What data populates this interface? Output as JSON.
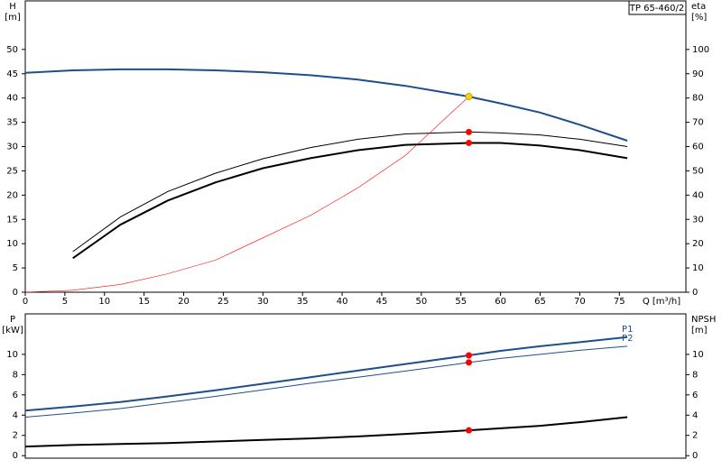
{
  "chart_data": [
    {
      "type": "line",
      "title": "TP 65-460/2",
      "x_label": "Q [m³/h]",
      "y_label": "H",
      "y_unit": "[m]",
      "y2_label": "eta",
      "y2_unit": "[%]",
      "x": [
        0,
        6,
        12,
        18,
        24,
        30,
        36,
        42,
        48,
        56,
        60,
        65,
        70,
        76
      ],
      "xlim": [
        0,
        83.4
      ],
      "xticks": [
        0,
        5,
        10,
        15,
        20,
        25,
        30,
        35,
        40,
        45,
        50,
        55,
        60,
        65,
        70,
        75
      ],
      "ylim": [
        0,
        60
      ],
      "yticks": [
        0,
        5,
        10,
        15,
        20,
        25,
        30,
        35,
        40,
        45,
        50
      ],
      "y2lim": [
        0,
        120
      ],
      "y2ticks": [
        0,
        10,
        20,
        30,
        40,
        50,
        60,
        70,
        80,
        90,
        100
      ],
      "series": [
        {
          "color": "#1f4e8c",
          "line_width": 2,
          "values": [
            45.2,
            45.7,
            45.9,
            45.9,
            45.7,
            45.3,
            44.7,
            43.8,
            42.5,
            40.3,
            38.9,
            37,
            34.5,
            31.2
          ]
        },
        {
          "color": "#000000",
          "line_width": 1,
          "axis": "y2",
          "values": [
            null,
            16.7,
            31,
            41.5,
            49,
            55,
            59.6,
            63,
            65.2,
            66,
            65.6,
            64.8,
            63,
            60
          ]
        },
        {
          "color": "#000000",
          "line_width": 2,
          "axis": "y2",
          "values": [
            null,
            14,
            27.8,
            37.8,
            45.2,
            51.1,
            55.2,
            58.5,
            60.7,
            61.5,
            61.5,
            60.4,
            58.5,
            55.2
          ]
        },
        {
          "color": "#ff0000",
          "line_width": 0.6,
          "values": [
            0,
            0.4,
            1.6,
            3.8,
            6.6,
            11.2,
            15.8,
            21.5,
            28.2,
            40.3,
            null,
            null,
            null,
            null
          ]
        }
      ],
      "points": [
        {
          "x": 56,
          "y": 40.3,
          "color": "#ffd700"
        },
        {
          "x": 56,
          "y": 66,
          "axis": "y2",
          "color": "#ff0000"
        },
        {
          "x": 56,
          "y": 61.5,
          "axis": "y2",
          "color": "#ff0000"
        }
      ]
    },
    {
      "type": "line",
      "y_label": "P",
      "y_unit": "[kW]",
      "y2_label": "NPSH",
      "y2_unit": "[m]",
      "x": [
        0,
        6,
        12,
        18,
        24,
        30,
        36,
        42,
        48,
        56,
        60,
        65,
        70,
        76
      ],
      "xlim": [
        0,
        83.4
      ],
      "ylim": [
        -0.25,
        14
      ],
      "yticks": [
        0,
        2,
        4,
        6,
        8,
        10
      ],
      "y2lim": [
        -0.25,
        14
      ],
      "y2ticks": [
        0,
        2,
        4,
        6,
        8,
        10
      ],
      "series": [
        {
          "name": "P1",
          "color": "#1f4e8c",
          "line_width": 2,
          "values": [
            4.45,
            4.85,
            5.3,
            5.85,
            6.45,
            7.1,
            7.75,
            8.4,
            9.05,
            9.9,
            10.35,
            10.8,
            11.2,
            11.7
          ]
        },
        {
          "name": "P2",
          "color": "#1f4e8c",
          "line_width": 1,
          "values": [
            3.8,
            4.2,
            4.65,
            5.25,
            5.85,
            6.5,
            7.15,
            7.75,
            8.35,
            9.2,
            9.6,
            10.0,
            10.4,
            10.8
          ]
        },
        {
          "color": "#000000",
          "line_width": 2,
          "axis": "y2",
          "values": [
            0.9,
            1.05,
            1.15,
            1.25,
            1.4,
            1.55,
            1.7,
            1.9,
            2.15,
            2.5,
            2.7,
            2.95,
            3.3,
            3.8
          ]
        }
      ],
      "points": [
        {
          "x": 56,
          "y": 9.9,
          "color": "#ff0000"
        },
        {
          "x": 56,
          "y": 9.2,
          "color": "#ff0000"
        },
        {
          "x": 56,
          "y": 2.5,
          "axis": "y2",
          "color": "#ff0000"
        }
      ]
    }
  ]
}
